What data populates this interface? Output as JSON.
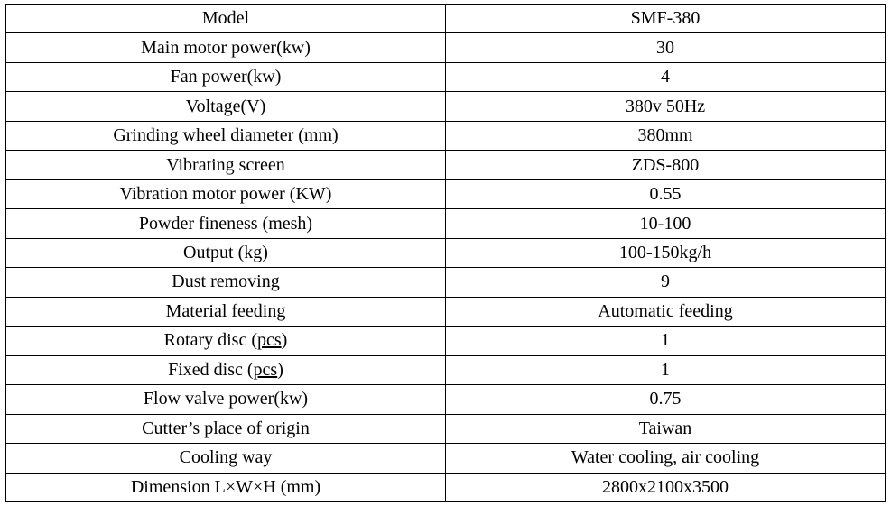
{
  "spec_table": {
    "type": "table",
    "columns": [
      "label",
      "value"
    ],
    "col_widths": [
      "50%",
      "50%"
    ],
    "background_color": "#ffffff",
    "border_color": "#000000",
    "text_color": "#000000",
    "font_family": "Times New Roman",
    "font_size": 20,
    "rows": [
      {
        "label": "Model",
        "value": "SMF-380"
      },
      {
        "label": "Main motor power(kw)",
        "value": "30"
      },
      {
        "label": "Fan power(kw)",
        "value": "4"
      },
      {
        "label": "Voltage(V)",
        "value": "380v 50Hz"
      },
      {
        "label": "Grinding wheel diameter (mm)",
        "value": "380mm"
      },
      {
        "label": "Vibrating screen",
        "value": "ZDS-800"
      },
      {
        "label": "Vibration motor power (KW)",
        "value": "0.55"
      },
      {
        "label": "Powder fineness (mesh)",
        "value": "10-100"
      },
      {
        "label": "Output (kg)",
        "value": "100-150kg/h"
      },
      {
        "label": "Dust removing",
        "value": "9"
      },
      {
        "label": "Material feeding",
        "value": "Automatic feeding"
      },
      {
        "label": "Rotary disc (pcs)",
        "value": "1",
        "label_underline_part": "pcs"
      },
      {
        "label": "Fixed disc (pcs)",
        "value": "1",
        "label_underline_part": "pcs"
      },
      {
        "label": "Flow valve power(kw)",
        "value": "0.75"
      },
      {
        "label": "Cutter’s place of origin",
        "value": "Taiwan"
      },
      {
        "label": "Cooling way",
        "value": "Water cooling, air cooling"
      },
      {
        "label": "Dimension L×W×H (mm)",
        "value": "2800x2100x3500"
      }
    ]
  }
}
